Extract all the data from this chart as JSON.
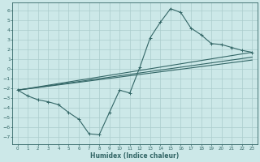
{
  "title": "",
  "xlabel": "Humidex (Indice chaleur)",
  "ylabel": "",
  "background_color": "#cce8e8",
  "grid_color": "#aacccc",
  "line_color": "#336666",
  "xlim": [
    -0.5,
    23.5
  ],
  "ylim": [
    -7.8,
    6.8
  ],
  "xticks": [
    0,
    1,
    2,
    3,
    4,
    5,
    6,
    7,
    8,
    9,
    10,
    11,
    12,
    13,
    14,
    15,
    16,
    17,
    18,
    19,
    20,
    21,
    22,
    23
  ],
  "yticks": [
    6,
    5,
    4,
    3,
    2,
    1,
    0,
    -1,
    -2,
    -3,
    -4,
    -5,
    -6,
    -7
  ],
  "main_series": {
    "x": [
      0,
      1,
      2,
      3,
      4,
      5,
      6,
      7,
      8,
      9,
      10,
      11,
      12,
      13,
      14,
      15,
      16,
      17,
      18,
      19,
      20,
      21,
      22,
      23
    ],
    "y": [
      -2.2,
      -2.8,
      -3.2,
      -3.4,
      -3.7,
      -4.5,
      -5.2,
      -6.7,
      -6.8,
      -4.5,
      -2.2,
      -2.5,
      0.2,
      3.2,
      4.8,
      6.2,
      5.8,
      4.2,
      3.5,
      2.6,
      2.5,
      2.2,
      1.9,
      1.7
    ]
  },
  "straight_lines": [
    {
      "x0": 0,
      "y0": -2.2,
      "x1": 23,
      "y1": 1.7
    },
    {
      "x0": 0,
      "y0": -2.2,
      "x1": 23,
      "y1": 0.9
    },
    {
      "x0": 0,
      "y0": -2.2,
      "x1": 23,
      "y1": 1.2
    }
  ]
}
